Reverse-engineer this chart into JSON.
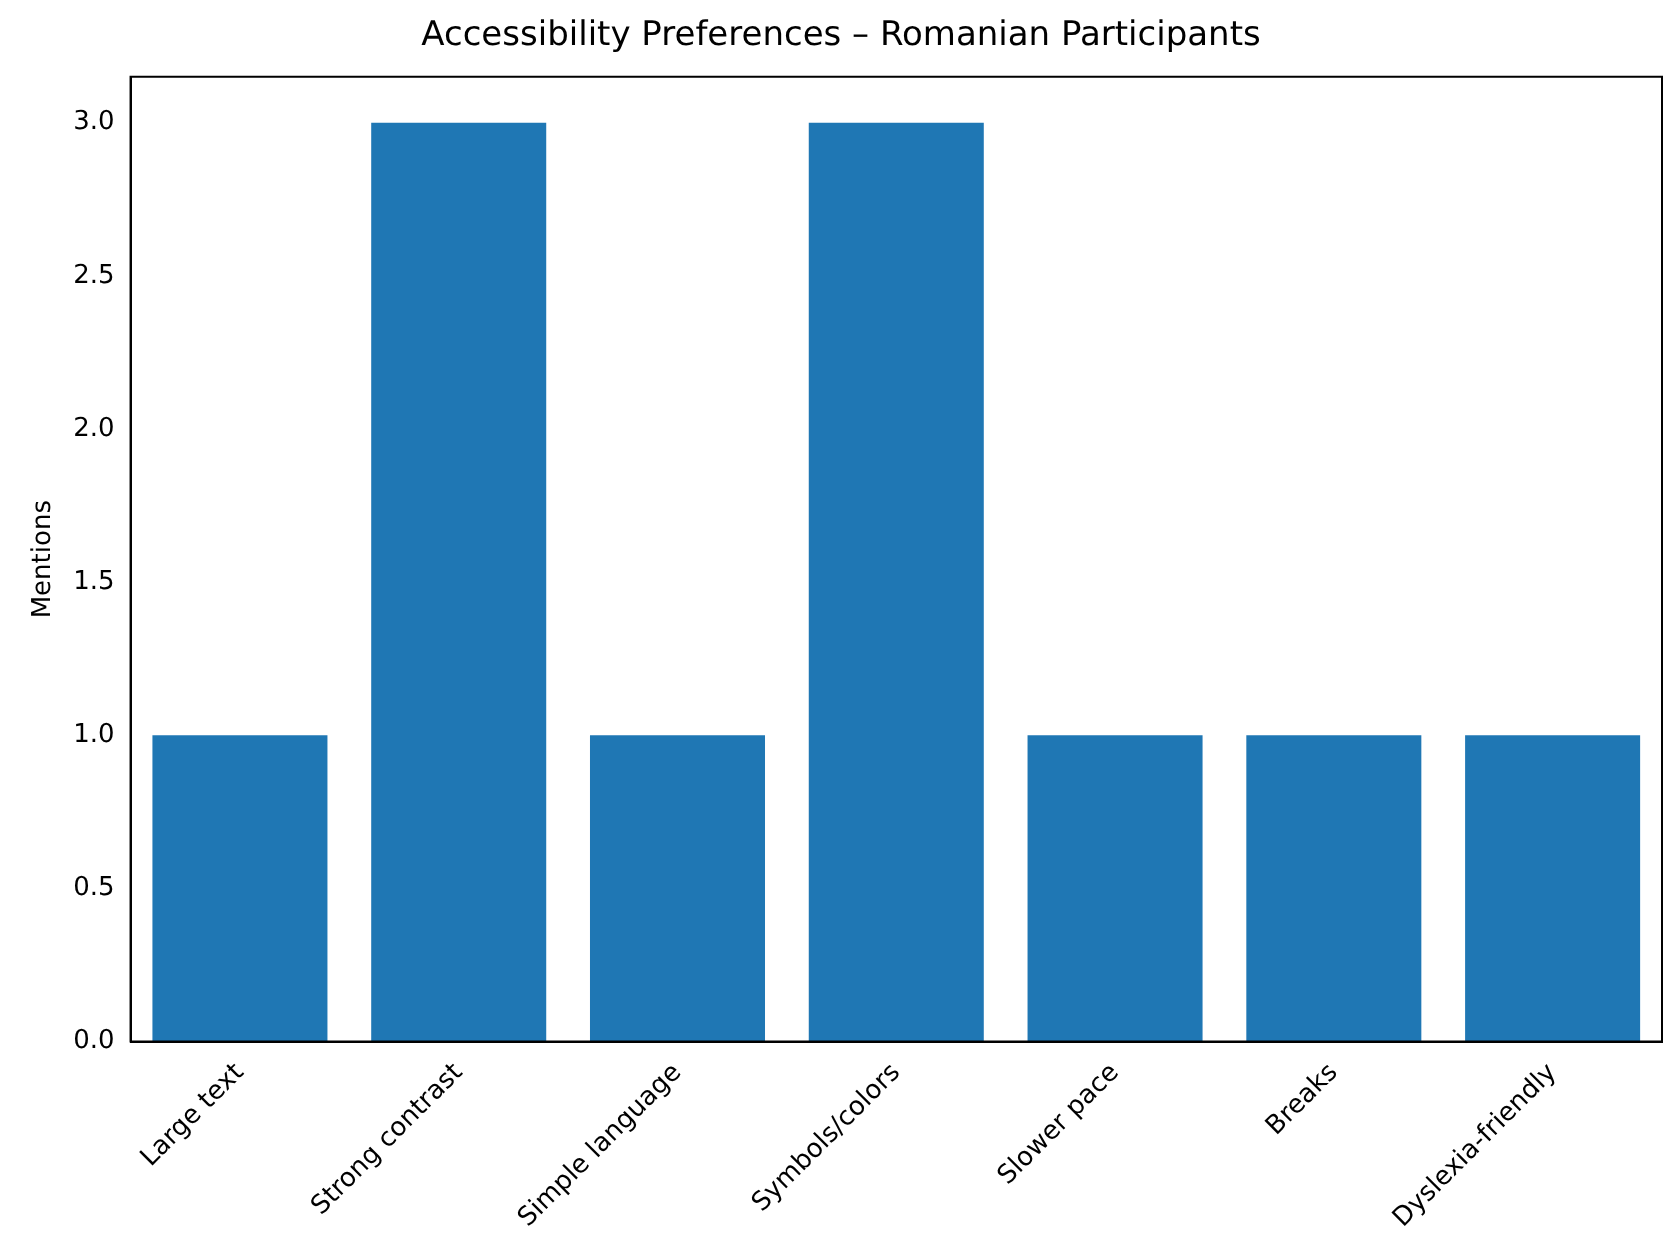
{
  "chart_data": {
    "type": "bar",
    "title": "Accessibility Preferences – Romanian Participants",
    "ylabel": "Mentions",
    "categories": [
      "Large text",
      "Strong contrast",
      "Simple language",
      "Symbols/colors",
      "Slower pace",
      "Breaks",
      "Dyslexia-friendly"
    ],
    "values": [
      1,
      3,
      1,
      3,
      1,
      1,
      1
    ],
    "color": "#1f77b4",
    "ylim": [
      0,
      3.15
    ],
    "yticks": [
      {
        "value": 0,
        "label": "0.0"
      },
      {
        "value": 0.5,
        "label": "0.5"
      },
      {
        "value": 1,
        "label": "1.0"
      },
      {
        "value": 1.5,
        "label": "1.5"
      },
      {
        "value": 2,
        "label": "2.0"
      },
      {
        "value": 2.5,
        "label": "2.5"
      },
      {
        "value": 3,
        "label": "3.0"
      }
    ],
    "grid": false,
    "legend": false
  }
}
